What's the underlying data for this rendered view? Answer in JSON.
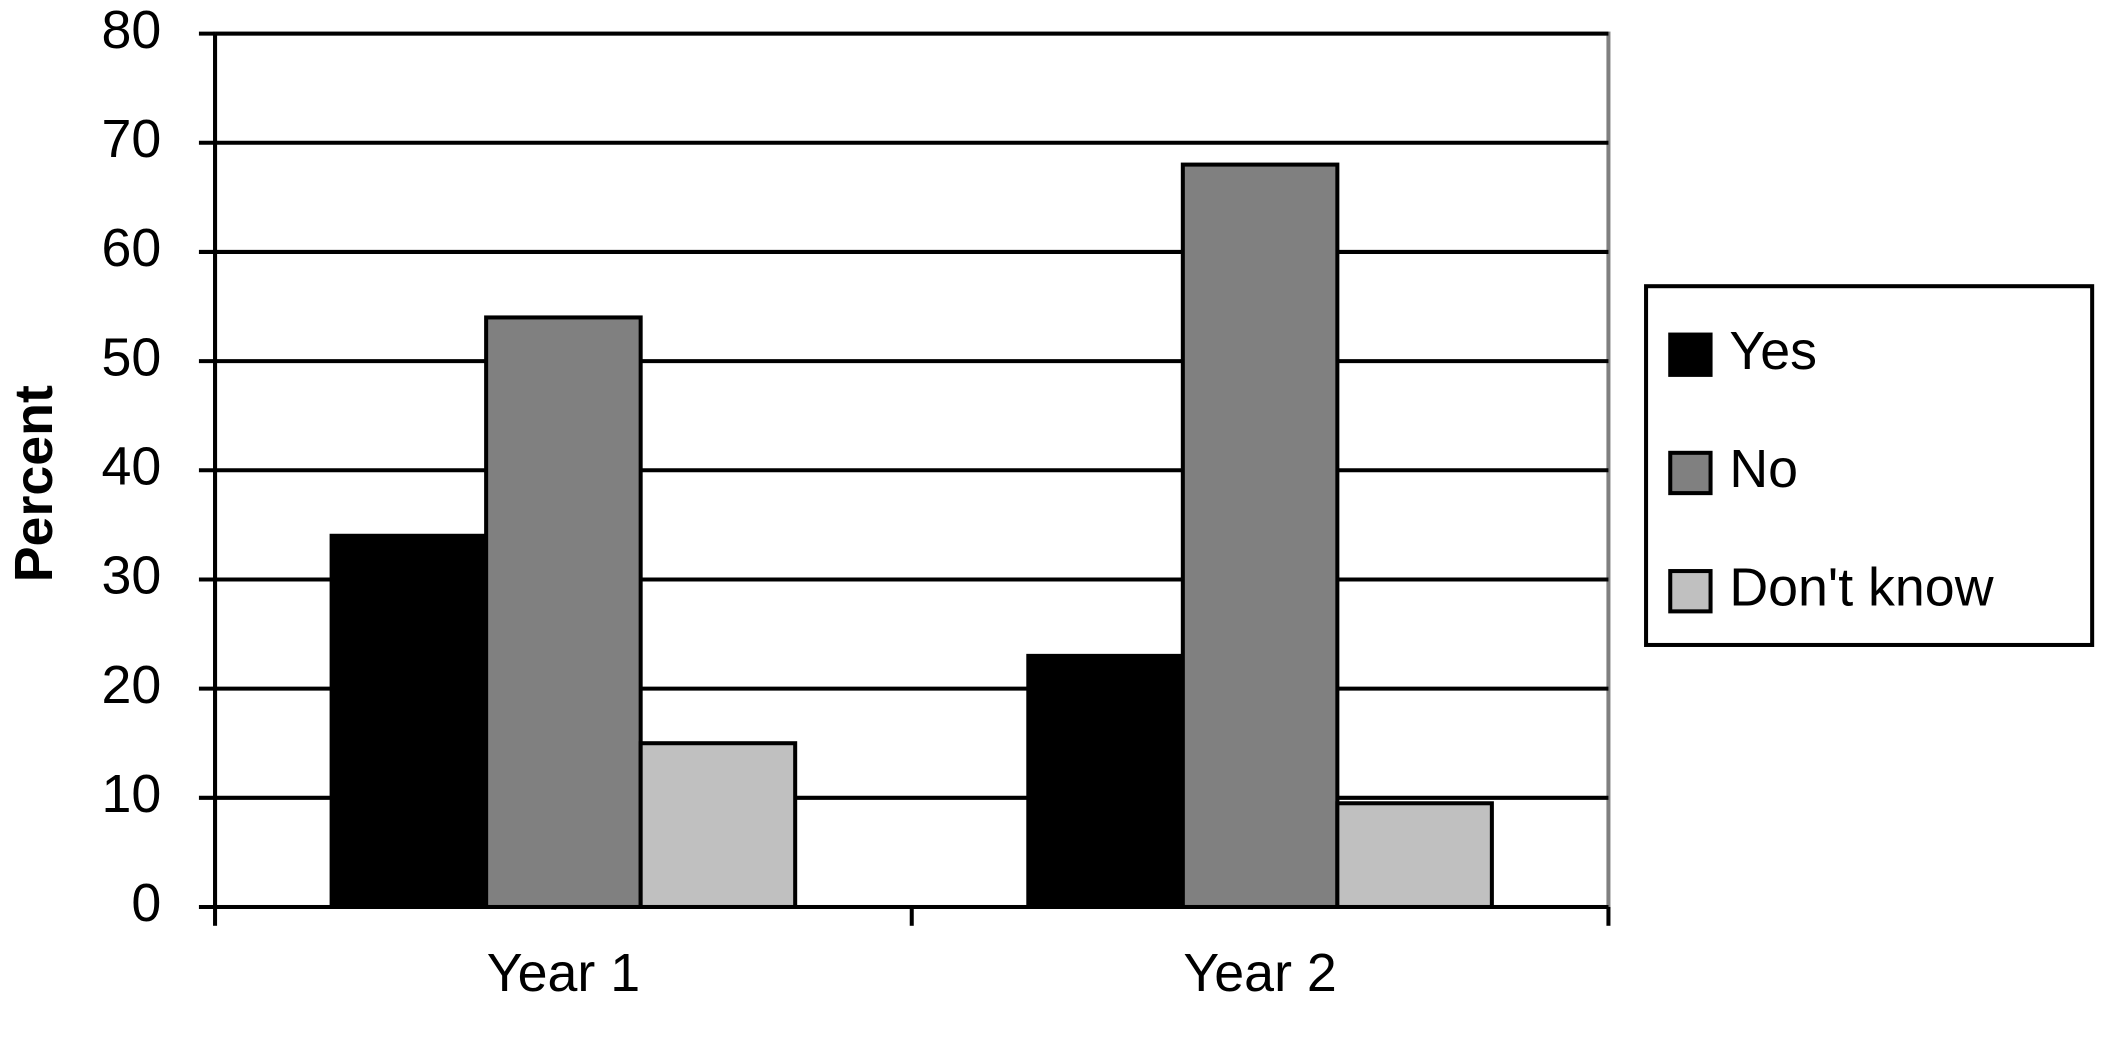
{
  "chart_data": {
    "type": "bar",
    "y_label": "Percent",
    "categories": [
      "Year 1",
      "Year 2"
    ],
    "series": [
      {
        "name": "Yes",
        "color": "#000000",
        "values": [
          34,
          23
        ]
      },
      {
        "name": "No",
        "color": "#808080",
        "values": [
          54,
          68
        ]
      },
      {
        "name": "Don't know",
        "color": "#c0c0c0",
        "values": [
          15,
          9.5
        ]
      }
    ],
    "ylim": [
      0,
      80
    ],
    "yticks": [
      0,
      10,
      20,
      30,
      40,
      50,
      60,
      70,
      80
    ],
    "grid": true,
    "legend": "right"
  }
}
